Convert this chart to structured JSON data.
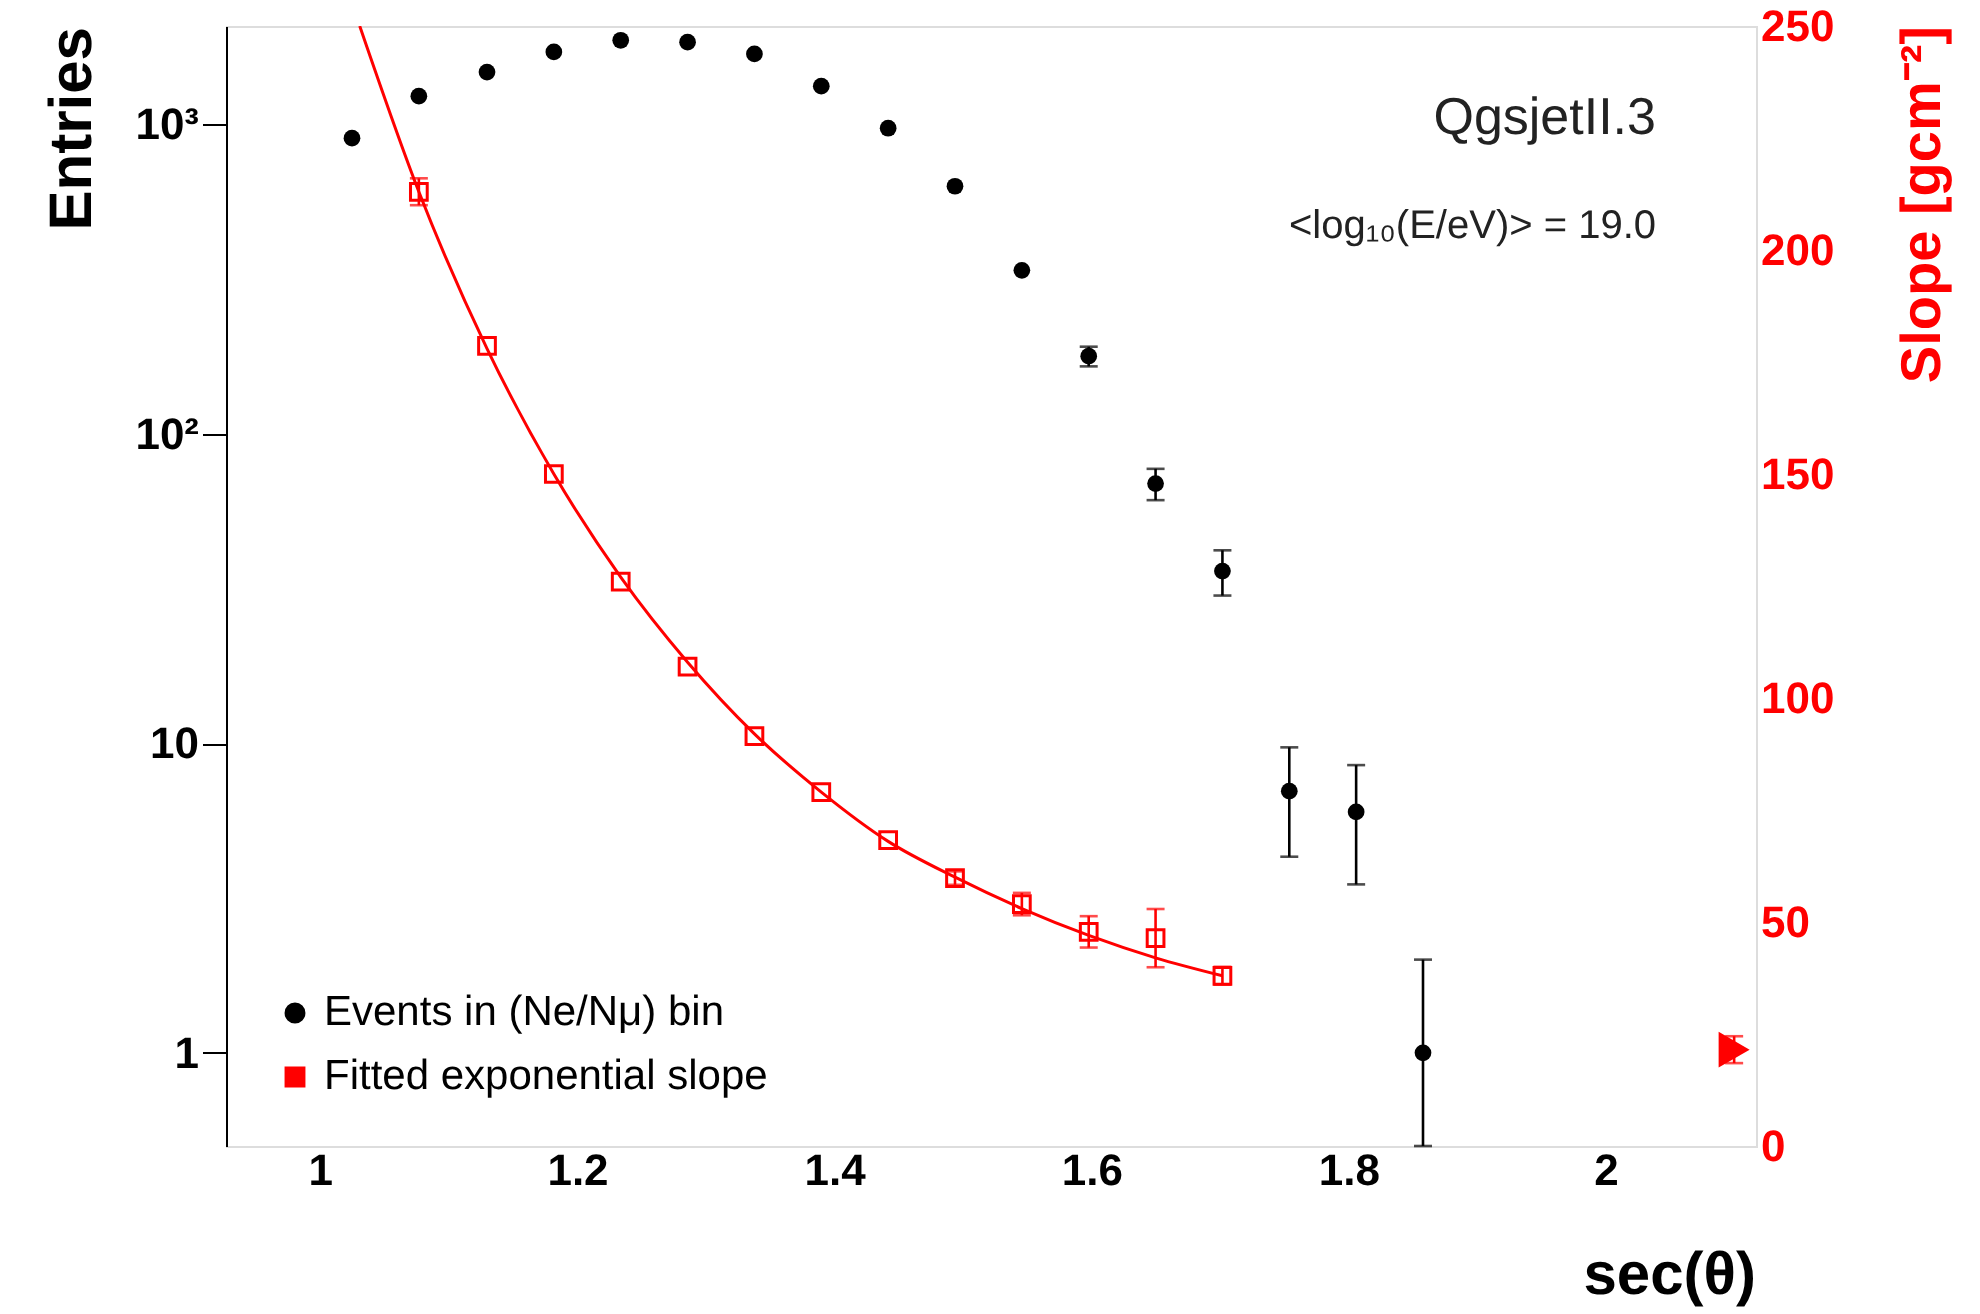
{
  "chart_data": {
    "type": "scatter",
    "xlabel": "sec(θ)",
    "ylabel": "Entries",
    "y2label": "Slope  [gcm⁻²]",
    "annotations": [
      "QgsjetII.3",
      "<log₁₀(E/eV)> = 19.0"
    ],
    "xlim": [
      0.927,
      2.117
    ],
    "xticks": [
      1,
      1.2,
      1.4,
      1.6,
      1.8,
      2
    ],
    "ylim": [
      0.5,
      2075
    ],
    "yticks": [
      1,
      10,
      {
        "value": 100,
        "label": "10²"
      },
      {
        "value": 1000,
        "label": "10³"
      }
    ],
    "y2lim": [
      0,
      250
    ],
    "y2ticks": [
      0,
      50,
      100,
      150,
      200,
      250
    ],
    "log": "y",
    "grid": false,
    "legend": "bottom left",
    "series": [
      {
        "name": "Events in (Ne/Nμ) bin",
        "marker": "circle",
        "axis": "y",
        "color": "#000000",
        "x": [
          1.025,
          1.077,
          1.13,
          1.182,
          1.234,
          1.286,
          1.338,
          1.39,
          1.442,
          1.494,
          1.546,
          1.598,
          1.65,
          1.702,
          1.754,
          1.806,
          1.858
        ],
        "values": [
          901,
          1231,
          1473,
          1711,
          1866,
          1840,
          1686,
          1326,
          970,
          630,
          337,
          178,
          69,
          36,
          7.0,
          6.0,
          1
        ],
        "errors": [
          null,
          null,
          null,
          null,
          null,
          null,
          null,
          null,
          null,
          null,
          null,
          13,
          8,
          6,
          2.7,
          2.5,
          [
            0.5,
            2
          ]
        ]
      },
      {
        "name": "Fitted exponential slope",
        "marker": "square",
        "axis": "y2",
        "color": "#ff0000",
        "x": [
          1.077,
          1.13,
          1.182,
          1.234,
          1.286,
          1.338,
          1.39,
          1.442,
          1.494,
          1.546,
          1.598,
          1.65,
          1.702
        ],
        "values": [
          213,
          178.6,
          150,
          126,
          107,
          91.5,
          79,
          68.3,
          59.8,
          54,
          47.8,
          46.4,
          38
        ],
        "errors": [
          3,
          null,
          null,
          null,
          null,
          null,
          null,
          null,
          1.5,
          2.5,
          3.5,
          6.5,
          2
        ]
      },
      {
        "type": "line",
        "marker": "none",
        "line_style": "solid",
        "axis": "y2",
        "color": "#ff0000",
        "x": [
          1.031,
          1.077,
          1.13,
          1.182,
          1.234,
          1.286,
          1.338,
          1.39,
          1.442,
          1.494,
          1.546,
          1.598,
          1.65,
          1.702
        ],
        "values": [
          250,
          213,
          178,
          150,
          127,
          108,
          92,
          79,
          68,
          60,
          53,
          47,
          42,
          38
        ]
      },
      {
        "marker": "triangle",
        "axis": "y2",
        "color": "#ff0000",
        "x": [
          2.1
        ],
        "values": [
          21.5
        ],
        "errors": [
          3
        ]
      }
    ]
  }
}
